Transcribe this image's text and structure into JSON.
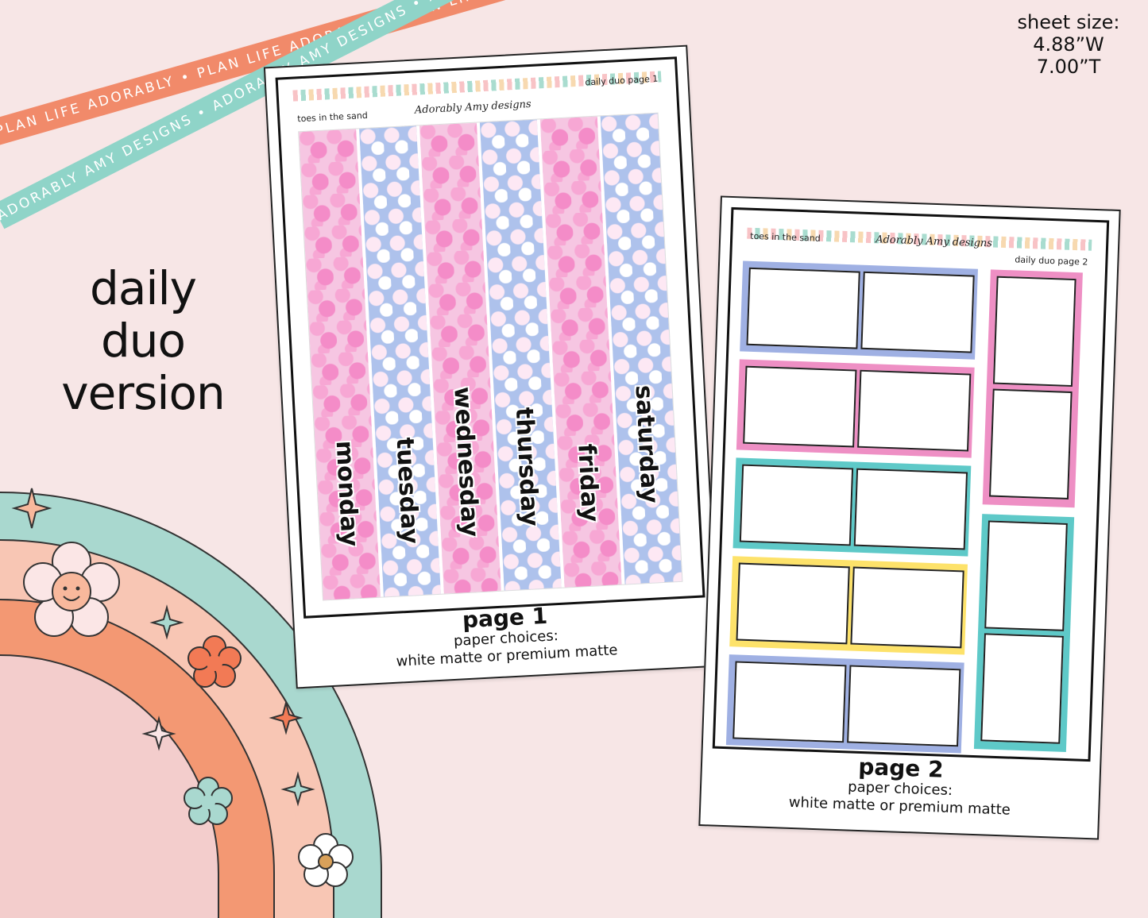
{
  "ribbons": {
    "orange_text": "PLAN LIFE ADORABLY • PLAN LIFE ADORABLY • PLAN LIFE ADORABLY",
    "teal_text": "ADORABLY AMY DESIGNS • ADORABLY AMY DESIGNS • ADORABLY AMY DESIGNS"
  },
  "title": {
    "line1": "daily",
    "line2": "duo",
    "line3": "version"
  },
  "sheet_size": {
    "label": "sheet size:",
    "width": "4.88”W",
    "height": "7.00”T"
  },
  "page1": {
    "left_header": "toes in the sand",
    "brand": "Adorably Amy designs",
    "right_header": "daily duo page 1",
    "days": [
      "monday",
      "tuesday",
      "wednesday",
      "thursday",
      "friday",
      "saturday"
    ],
    "caption_title": "page 1",
    "caption_line1": "paper choices:",
    "caption_line2": "white matte or premium matte"
  },
  "page2": {
    "left_header": "toes in the sand",
    "brand": "Adorably Amy designs",
    "right_header": "daily duo page 2",
    "caption_title": "page 2",
    "caption_line1": "paper choices:",
    "caption_line2": "white matte or premium matte"
  },
  "colors": {
    "blue": "#9fb0e3",
    "pink": "#ee8fc4",
    "teal": "#5ec9c8",
    "yellow": "#fde26a",
    "rainbow_outer": "#a9d8cf",
    "rainbow_mid1": "#f8c6b4",
    "rainbow_mid2": "#f39873",
    "rainbow_inner": "#f3cdcc"
  },
  "icons": [
    "smiley-flower-icon",
    "flower-icon",
    "sparkle-icon"
  ]
}
